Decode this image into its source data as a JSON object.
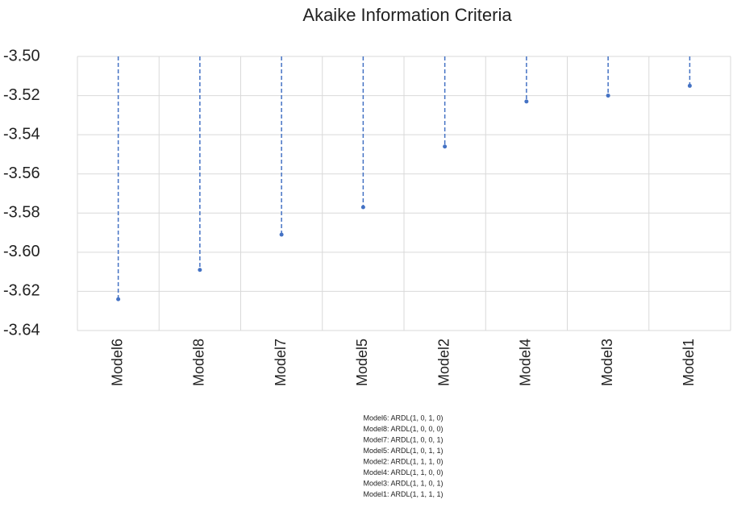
{
  "chart_data": {
    "type": "dropline",
    "title": "Akaike Information Criteria",
    "categories": [
      "Model6",
      "Model8",
      "Model7",
      "Model5",
      "Model2",
      "Model4",
      "Model3",
      "Model1"
    ],
    "values": [
      -3.624,
      -3.609,
      -3.591,
      -3.577,
      -3.546,
      -3.523,
      -3.52,
      -3.515
    ],
    "color": "#4472c4",
    "ylim": [
      -3.64,
      -3.5
    ],
    "yticks": [
      {
        "value": -3.5,
        "label": "-3.50"
      },
      -3.52,
      -3.54,
      -3.56,
      -3.58,
      {
        "value": -3.6,
        "label": "-3.60"
      },
      -3.62,
      -3.64
    ],
    "grid": true,
    "annotations": [
      "Model6: ARDL(1, 0, 1, 0)",
      "Model8: ARDL(1, 0, 0, 0)",
      "Model7: ARDL(1, 0, 0, 1)",
      "Model5: ARDL(1, 0, 1, 1)",
      "Model2: ARDL(1, 1, 1, 0)",
      "Model4: ARDL(1, 1, 0, 0)",
      "Model3: ARDL(1, 1, 0, 1)",
      "Model1: ARDL(1, 1, 1, 1)"
    ]
  }
}
